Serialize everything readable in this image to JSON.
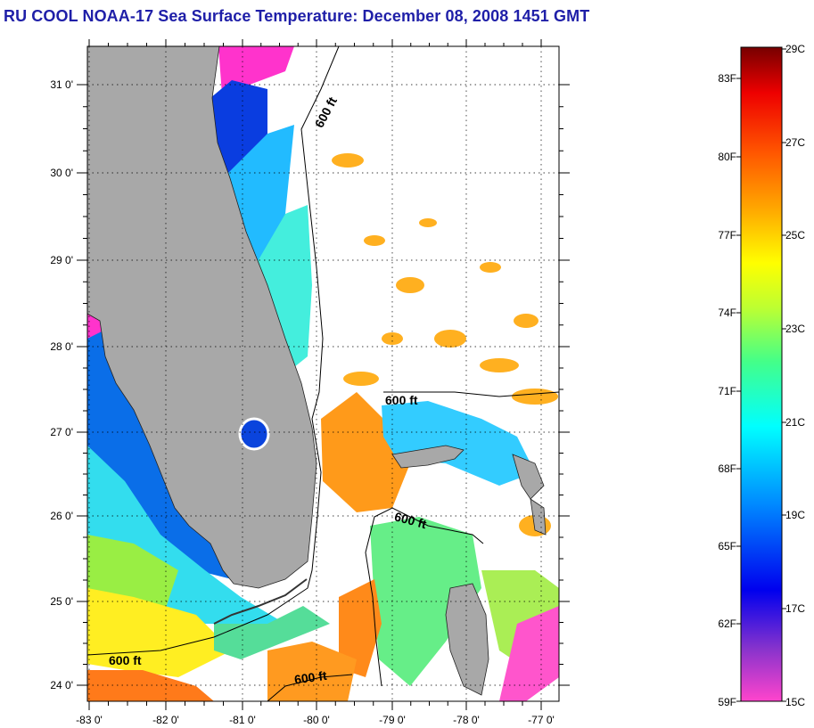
{
  "title": "RU COOL  NOAA-17  Sea Surface Temperature:  December 08, 2008 1451 GMT",
  "map": {
    "lat_labels": [
      "31 0'",
      "30 0'",
      "29 0'",
      "28 0'",
      "27 0'",
      "26 0'",
      "25 0'",
      "24 0'"
    ],
    "lon_labels": [
      "-83 0'",
      "-82 0'",
      "-81 0'",
      "-80 0'",
      "-79 0'",
      "-78 0'",
      "-77 0'"
    ],
    "isobath_label": "600 ft",
    "land_color": "#a8a8a8",
    "cloud_color": "#ffffff"
  },
  "colorbar": {
    "fahrenheit_labels": [
      "83F",
      "80F",
      "77F",
      "74F",
      "71F",
      "68F",
      "65F",
      "62F",
      "59F"
    ],
    "celsius_labels": [
      "29C",
      "27C",
      "25C",
      "23C",
      "21C",
      "19C",
      "17C",
      "15C"
    ],
    "colors": [
      "#ff44cc",
      "#8833cc",
      "#0000ee",
      "#0088ff",
      "#00ffff",
      "#44ff88",
      "#bbff33",
      "#ffff00",
      "#ffaa00",
      "#ff5500",
      "#ee0000",
      "#770000"
    ]
  }
}
